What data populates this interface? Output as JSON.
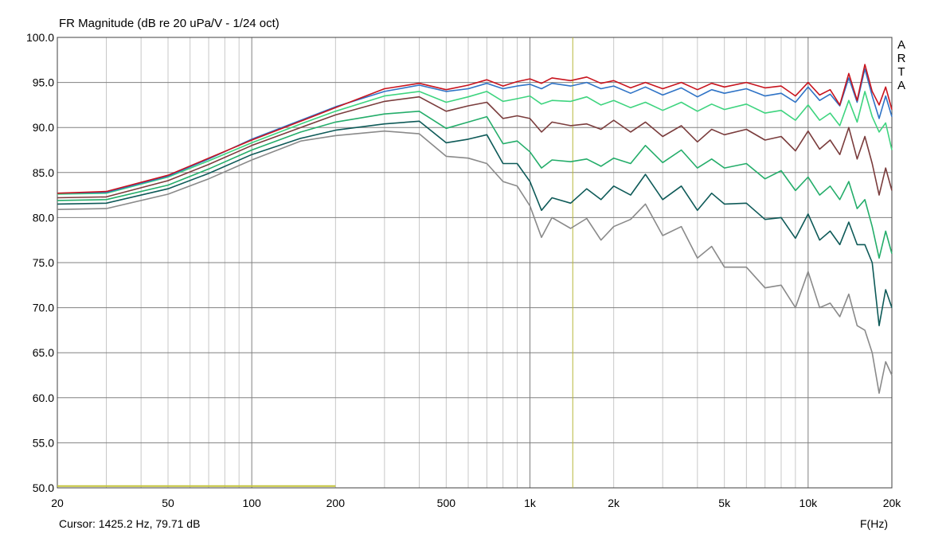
{
  "chart_data": {
    "type": "line",
    "title": "FR Magnitude (dB re 20 uPa/V - 1/24 oct)",
    "xlabel": "F(Hz)",
    "xscale": "log",
    "xlim": [
      20,
      20000
    ],
    "ylim": [
      50,
      100
    ],
    "grid": true,
    "y_ticks": [
      "50.0",
      "55.0",
      "60.0",
      "65.0",
      "70.0",
      "75.0",
      "80.0",
      "85.0",
      "90.0",
      "95.0",
      "100.0"
    ],
    "x_ticks": [
      {
        "value": 20,
        "label": "20"
      },
      {
        "value": 50,
        "label": "50"
      },
      {
        "value": 100,
        "label": "100"
      },
      {
        "value": 200,
        "label": "200"
      },
      {
        "value": 500,
        "label": "500"
      },
      {
        "value": 1000,
        "label": "1k"
      },
      {
        "value": 2000,
        "label": "2k"
      },
      {
        "value": 5000,
        "label": "5k"
      },
      {
        "value": 10000,
        "label": "10k"
      },
      {
        "value": 20000,
        "label": "20k"
      }
    ],
    "x": [
      20,
      30,
      50,
      70,
      100,
      150,
      200,
      300,
      400,
      500,
      600,
      700,
      800,
      900,
      1000,
      1100,
      1200,
      1400,
      1600,
      1800,
      2000,
      2300,
      2600,
      3000,
      3500,
      4000,
      4500,
      5000,
      6000,
      7000,
      8000,
      9000,
      10000,
      11000,
      12000,
      13000,
      14000,
      15000,
      16000,
      17000,
      18000,
      19000,
      20000
    ],
    "series": [
      {
        "color": "#c8141e",
        "values": [
          82.7,
          82.9,
          84.7,
          86.6,
          88.6,
          90.7,
          92.2,
          94.3,
          94.9,
          94.2,
          94.7,
          95.3,
          94.6,
          95.1,
          95.4,
          94.9,
          95.5,
          95.2,
          95.6,
          94.9,
          95.2,
          94.4,
          95.0,
          94.3,
          95.0,
          94.2,
          94.9,
          94.5,
          95.0,
          94.4,
          94.6,
          93.5,
          95.0,
          93.6,
          94.2,
          92.5,
          96.0,
          93.0,
          97.0,
          94.0,
          92.5,
          94.5,
          92.0
        ]
      },
      {
        "color": "#2f73c6",
        "values": [
          82.7,
          82.8,
          84.6,
          86.5,
          88.7,
          90.8,
          92.3,
          94.0,
          94.7,
          94.0,
          94.3,
          94.9,
          94.3,
          94.6,
          94.8,
          94.3,
          94.9,
          94.6,
          95.0,
          94.3,
          94.6,
          93.8,
          94.5,
          93.6,
          94.4,
          93.4,
          94.2,
          93.8,
          94.3,
          93.5,
          93.8,
          92.8,
          94.5,
          93.0,
          93.7,
          92.4,
          95.5,
          92.8,
          96.5,
          93.5,
          91.0,
          93.5,
          91.2
        ]
      },
      {
        "color": "#3ed47f",
        "values": [
          82.6,
          82.7,
          84.5,
          86.3,
          88.3,
          90.4,
          91.8,
          93.5,
          94.0,
          92.8,
          93.4,
          94.0,
          92.9,
          93.2,
          93.5,
          92.6,
          93.0,
          92.9,
          93.4,
          92.5,
          93.0,
          92.2,
          92.8,
          91.9,
          92.8,
          91.8,
          92.6,
          92.0,
          92.6,
          91.6,
          91.9,
          90.8,
          92.5,
          90.8,
          91.6,
          90.2,
          93.0,
          90.6,
          94.0,
          91.2,
          89.5,
          90.5,
          87.5
        ]
      },
      {
        "color": "#7a3c3c",
        "values": [
          82.2,
          82.3,
          84.1,
          85.9,
          88.0,
          90.0,
          91.4,
          92.9,
          93.4,
          91.8,
          92.4,
          92.8,
          91.0,
          91.3,
          91.0,
          89.5,
          90.6,
          90.2,
          90.4,
          89.8,
          90.8,
          89.5,
          90.6,
          89.0,
          90.2,
          88.4,
          89.8,
          89.2,
          89.8,
          88.6,
          89.0,
          87.4,
          89.6,
          87.6,
          88.6,
          87.0,
          90.0,
          86.5,
          89.0,
          86.0,
          82.5,
          85.5,
          83.0
        ]
      },
      {
        "color": "#24ad6a",
        "values": [
          81.9,
          82.0,
          83.6,
          85.4,
          87.5,
          89.5,
          90.6,
          91.5,
          91.8,
          89.9,
          90.6,
          91.2,
          88.2,
          88.5,
          87.3,
          85.5,
          86.4,
          86.2,
          86.5,
          85.7,
          86.6,
          86.0,
          88.0,
          86.1,
          87.5,
          85.5,
          86.5,
          85.5,
          86.0,
          84.3,
          85.2,
          83.0,
          84.5,
          82.5,
          83.5,
          82.0,
          84.0,
          81.0,
          82.0,
          79.0,
          75.5,
          78.5,
          76.0
        ]
      },
      {
        "color": "#0e5a58",
        "values": [
          81.5,
          81.6,
          83.2,
          84.9,
          87.0,
          88.8,
          89.7,
          90.4,
          90.7,
          88.3,
          88.7,
          89.2,
          86.0,
          86.0,
          84.0,
          80.8,
          82.2,
          81.6,
          83.2,
          82.0,
          83.5,
          82.5,
          84.8,
          82.0,
          83.5,
          80.8,
          82.7,
          81.5,
          81.6,
          79.8,
          80.0,
          77.7,
          80.4,
          77.5,
          78.5,
          77.0,
          79.5,
          77.0,
          77.0,
          75.0,
          68.0,
          72.0,
          70.0
        ]
      },
      {
        "color": "#8a8a8a",
        "values": [
          80.9,
          81.0,
          82.6,
          84.3,
          86.4,
          88.5,
          89.1,
          89.6,
          89.3,
          86.8,
          86.6,
          86.0,
          84.0,
          83.5,
          81.3,
          77.8,
          80.0,
          78.8,
          79.9,
          77.5,
          79.0,
          79.8,
          81.5,
          78.0,
          79.0,
          75.5,
          76.8,
          74.5,
          74.5,
          72.2,
          72.5,
          70.0,
          74.0,
          70.0,
          70.5,
          69.0,
          71.5,
          68.0,
          67.5,
          65.0,
          60.5,
          64.0,
          62.5
        ]
      }
    ],
    "cursor_frequency": 1425.2,
    "reference_line": {
      "color": "#c4c43a",
      "y": 50.2,
      "x_range": [
        20,
        200
      ]
    }
  },
  "cursor_label": "Cursor: 1425.2 Hz, 79.71 dB",
  "brand_letters": [
    "A",
    "R",
    "T",
    "A"
  ],
  "colors": {
    "grid_minor": "#c8c8c8",
    "grid_major": "#808080",
    "cursor": "#b6b63a",
    "background": "#ffffff"
  }
}
